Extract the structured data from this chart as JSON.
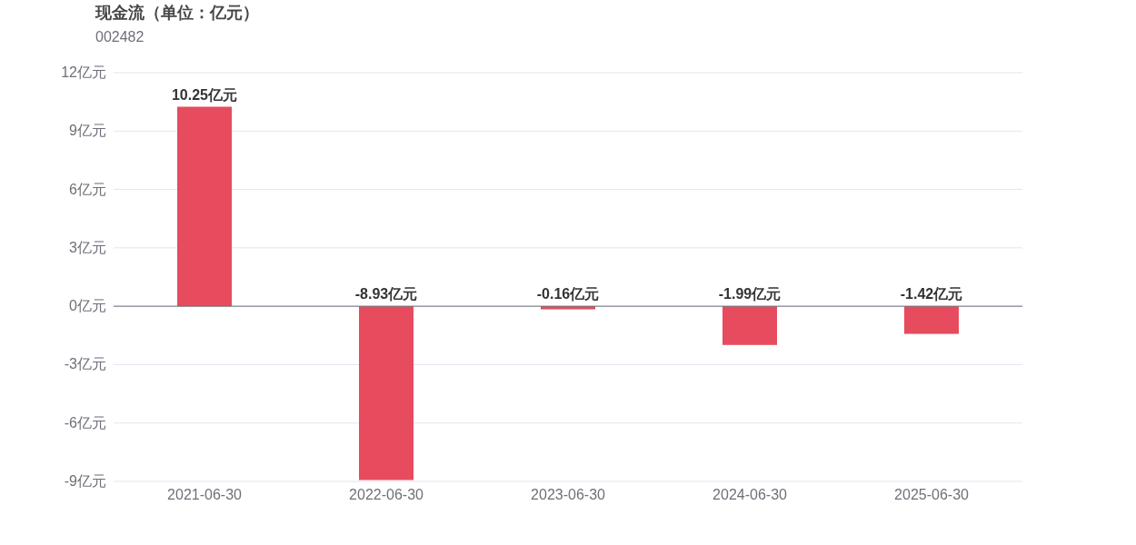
{
  "chart_data": {
    "type": "bar",
    "title": "现金流（单位：亿元）",
    "subtitle": "002482",
    "categories": [
      "2021-06-30",
      "2022-06-30",
      "2023-06-30",
      "2024-06-30",
      "2025-06-30"
    ],
    "values": [
      10.25,
      -8.93,
      -0.16,
      -1.99,
      -1.42
    ],
    "value_labels": [
      "10.25亿元",
      "-8.93亿元",
      "-0.16亿元",
      "-1.99亿元",
      "-1.42亿元"
    ],
    "color": "#e64c5e",
    "ylim": [
      -9,
      12
    ],
    "yticks": [
      {
        "value": -9,
        "label": "-9亿元"
      },
      {
        "value": -6,
        "label": "-6亿元"
      },
      {
        "value": -3,
        "label": "-3亿元"
      },
      {
        "value": 0,
        "label": "0亿元"
      },
      {
        "value": 3,
        "label": "3亿元"
      },
      {
        "value": 6,
        "label": "6亿元"
      },
      {
        "value": 9,
        "label": "9亿元"
      },
      {
        "value": 12,
        "label": "12亿元"
      }
    ],
    "grid": "y"
  }
}
